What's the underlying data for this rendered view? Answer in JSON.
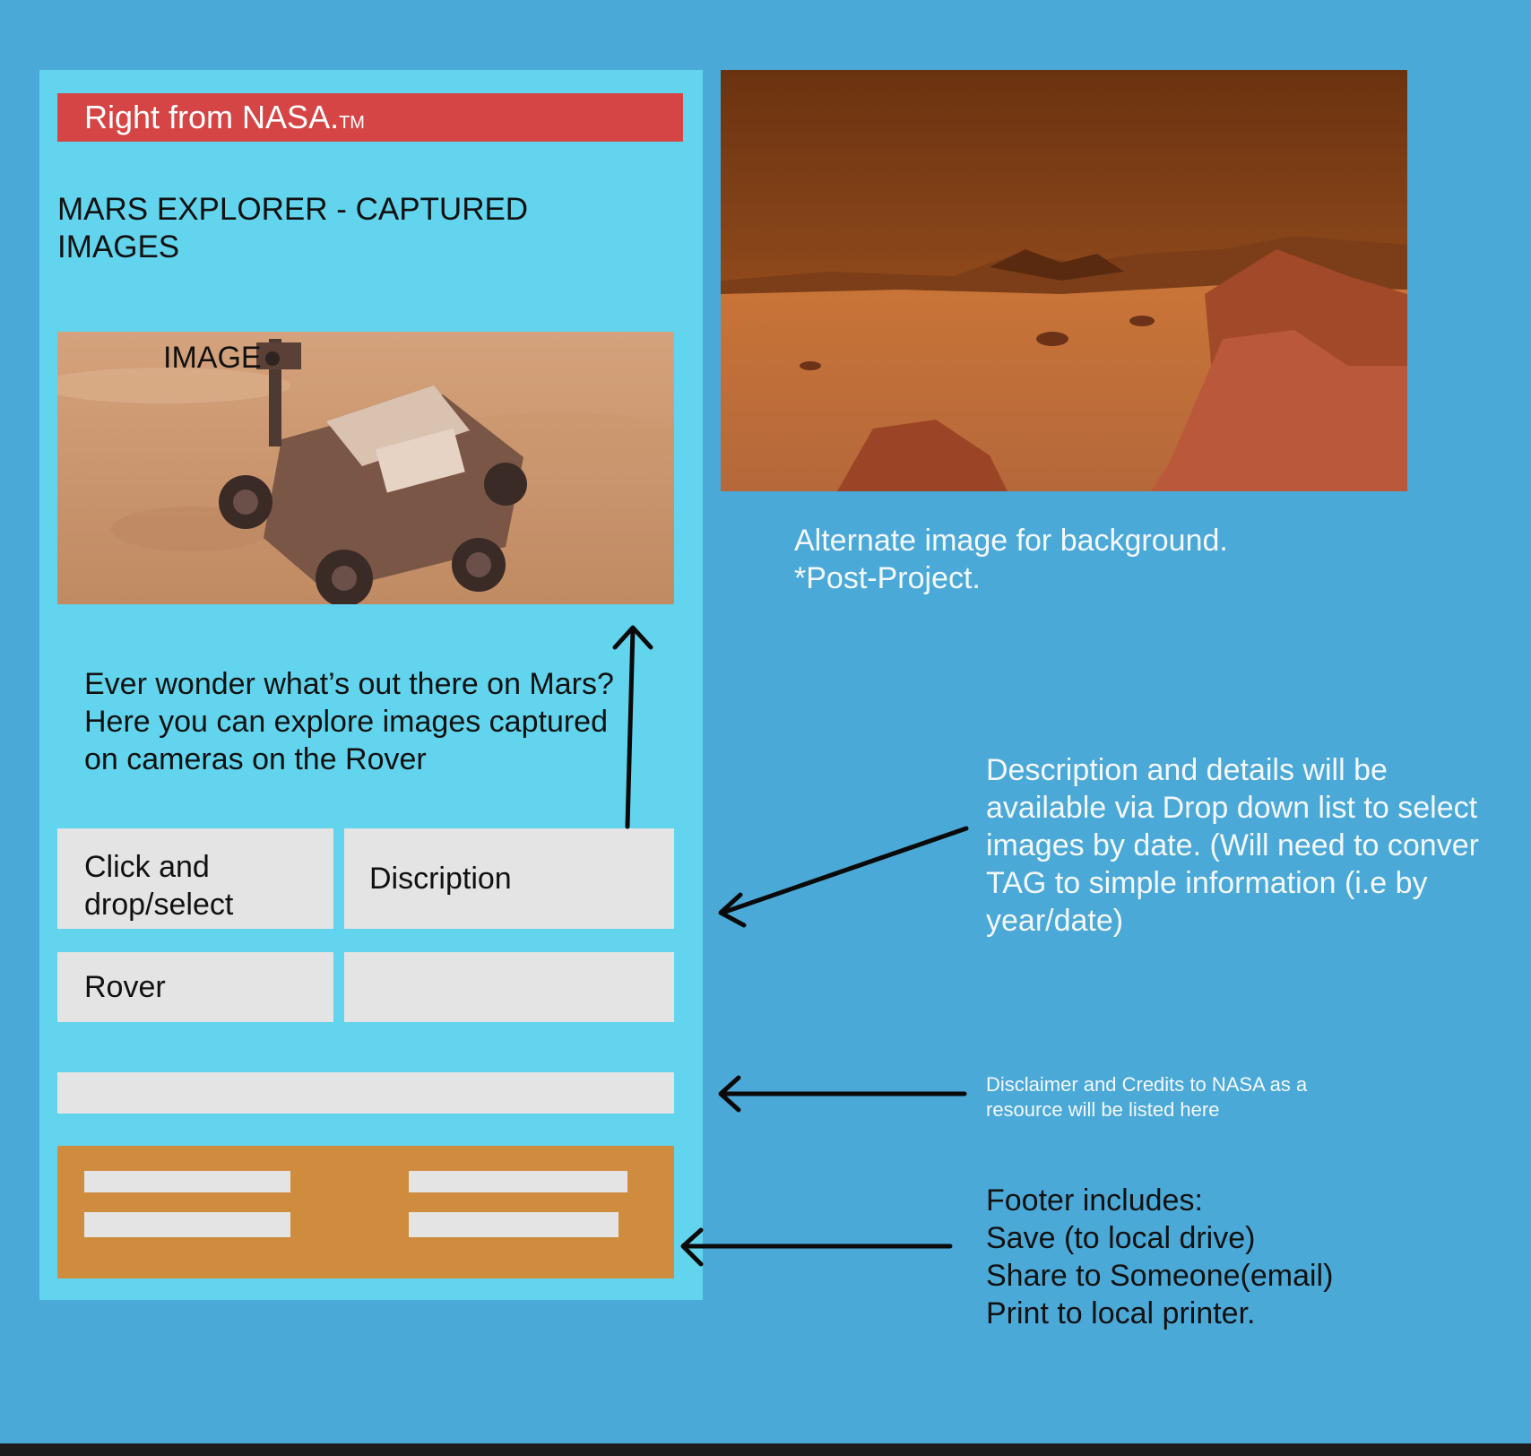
{
  "banner": {
    "text": "Right from NASA.",
    "tm": "TM"
  },
  "phone": {
    "title": "MARS EXPLORER - CAPTURED IMAGES",
    "image_label": "IMAGE",
    "intro": "Ever wonder what’s out there on Mars?  Here you can explore images captured on cameras on the Rover",
    "click_box_label": "Click and drop/select",
    "description_box_label": "Discription",
    "rover_box_label": "Rover"
  },
  "notes": {
    "alt_image": "Alternate image for background. *Post-Project.",
    "description": "Description and details will be available via Drop down list to select images by date. (Will need to conver TAG to simple information (i.e by year/date)",
    "disclaimer": "Disclaimer and Credits to NASA as a resource will be listed here",
    "footer_title": "Footer includes:",
    "footer_items": [
      "Save (to local drive)",
      "Share to Someone(email)",
      "Print to local printer."
    ]
  },
  "colors": {
    "background": "#4ba9d8",
    "phone": "#62d4ed",
    "banner": "#d64545",
    "placeholder": "#e4e4e4",
    "footer": "#d08c3e"
  }
}
